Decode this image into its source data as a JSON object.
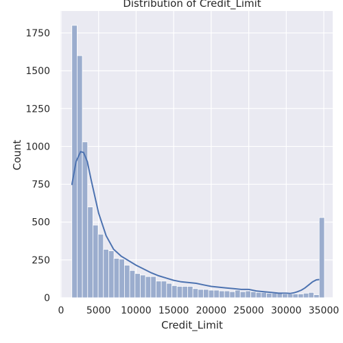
{
  "chart_data": {
    "type": "bar",
    "subtype": "histogram_with_kde",
    "title": "Distribution of Credit_Limit",
    "xlabel": "Credit_Limit",
    "ylabel": "Count",
    "xlim": [
      0,
      35500
    ],
    "ylim": [
      0,
      1880
    ],
    "xticks": [
      0,
      5000,
      10000,
      15000,
      20000,
      25000,
      30000,
      35000
    ],
    "yticks": [
      0,
      250,
      500,
      750,
      1000,
      1250,
      1500,
      1750
    ],
    "grid": true,
    "colors": {
      "background": "#eaeaf2",
      "grid": "#ffffff",
      "bar_fill": "#9badce",
      "bar_edge": "#ffffff",
      "kde_line": "#4c72b0"
    },
    "bin_edges": [
      1438,
      2139,
      2840,
      3541,
      4242,
      4943,
      5644,
      6345,
      7046,
      7747,
      8448,
      9149,
      9850,
      10551,
      11252,
      11953,
      12654,
      13355,
      14056,
      14757,
      15458,
      16159,
      16860,
      17561,
      18262,
      18963,
      19664,
      20365,
      21066,
      21767,
      22468,
      23169,
      23870,
      24571,
      25272,
      25973,
      26674,
      27375,
      28076,
      28777,
      29478,
      30179,
      30880,
      31581,
      32282,
      32983,
      33684,
      34385,
      35086
    ],
    "counts": [
      1800,
      1600,
      1030,
      600,
      480,
      420,
      320,
      310,
      260,
      255,
      215,
      180,
      160,
      150,
      140,
      140,
      110,
      110,
      95,
      80,
      75,
      75,
      75,
      60,
      55,
      55,
      50,
      50,
      45,
      45,
      40,
      50,
      40,
      45,
      40,
      35,
      35,
      30,
      30,
      30,
      25,
      25,
      25,
      25,
      30,
      35,
      20,
      530
    ],
    "kde": {
      "x": [
        1438,
        2000,
        2600,
        3000,
        3500,
        4000,
        5000,
        6000,
        7000,
        8000,
        9000,
        10000,
        11000,
        12000,
        13000,
        14000,
        15000,
        16000,
        17000,
        18000,
        19000,
        20000,
        21000,
        22000,
        23000,
        24000,
        25000,
        26000,
        27000,
        28000,
        29000,
        30000,
        30500,
        31000,
        31500,
        32000,
        32500,
        33000,
        33500,
        34000,
        34400
      ],
      "y": [
        745,
        900,
        965,
        960,
        900,
        780,
        560,
        410,
        320,
        275,
        245,
        215,
        190,
        165,
        145,
        130,
        115,
        105,
        100,
        95,
        85,
        75,
        70,
        65,
        60,
        55,
        55,
        45,
        40,
        35,
        30,
        30,
        28,
        32,
        40,
        50,
        65,
        85,
        105,
        118,
        120
      ]
    }
  }
}
